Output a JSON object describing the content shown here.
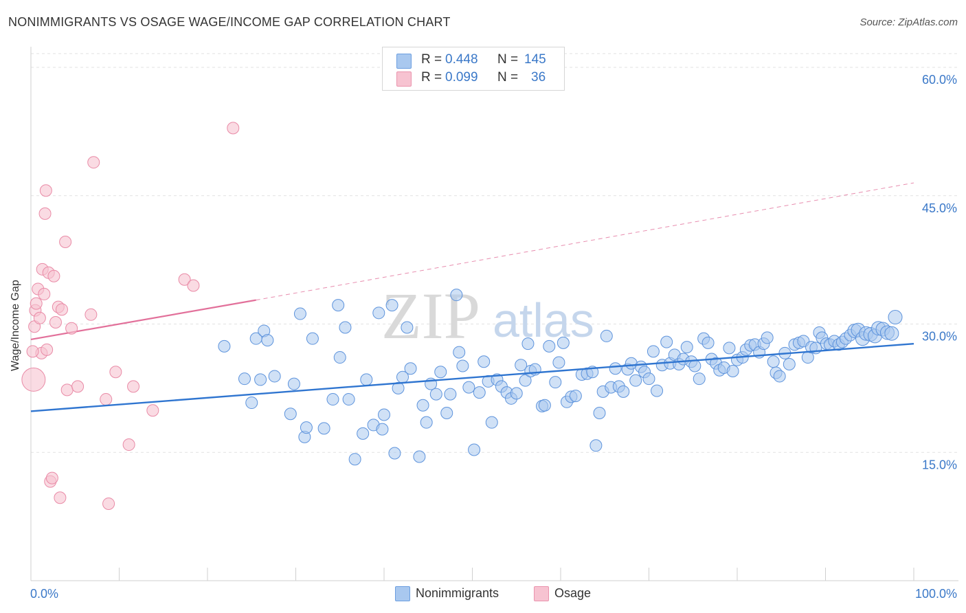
{
  "title": "NONIMMIGRANTS VS OSAGE WAGE/INCOME GAP CORRELATION CHART",
  "source": "Source: ZipAtlas.com",
  "watermark": {
    "zip": "ZIP",
    "atlas": "atlas"
  },
  "legend_stats": [
    {
      "r_label": "R = ",
      "r_value": "0.448",
      "n_label": "N = ",
      "n_value": "145",
      "color": "#a9c8ef",
      "border": "#6b9ee0"
    },
    {
      "r_label": "R = ",
      "r_value": "0.099",
      "n_label": "N = ",
      "n_value": "36",
      "color": "#f7c3d1",
      "border": "#ea93ad"
    }
  ],
  "colors": {
    "blue_fill": "#a9c8ef",
    "blue_stroke": "#5d93dc",
    "blue_line": "#2f75d0",
    "pink_fill": "#f7c3d1",
    "pink_stroke": "#e98aa6",
    "pink_line": "#e2709a",
    "tick_text": "#3a78c8",
    "grid": "#e1e1e1"
  },
  "chart_data": {
    "type": "scatter",
    "title": "NONIMMIGRANTS VS OSAGE WAGE/INCOME GAP CORRELATION CHART",
    "xlabel": "",
    "ylabel": "Wage/Income Gap",
    "xlim": [
      0,
      100
    ],
    "ylim": [
      0,
      61
    ],
    "x_ticks": [
      "0.0%",
      "100.0%"
    ],
    "y_ticks": [
      {
        "value": 15,
        "label": "15.0%"
      },
      {
        "value": 30,
        "label": "30.0%"
      },
      {
        "value": 45,
        "label": "45.0%"
      },
      {
        "value": 60,
        "label": "60.0%"
      }
    ],
    "grid": true,
    "legend_position": "bottom",
    "series": [
      {
        "name": "Nonimmigrants",
        "r": 0.448,
        "n": 145,
        "trend": {
          "x": [
            0,
            100
          ],
          "y": [
            19.8,
            27.7
          ],
          "style": "solid"
        },
        "points": [
          [
            21.9,
            27.4
          ],
          [
            24.2,
            23.6
          ],
          [
            25.0,
            20.8
          ],
          [
            25.5,
            28.3
          ],
          [
            26.0,
            23.5
          ],
          [
            26.4,
            29.2
          ],
          [
            26.8,
            28.1
          ],
          [
            27.6,
            23.9
          ],
          [
            29.4,
            19.5
          ],
          [
            29.8,
            23.0
          ],
          [
            30.5,
            31.2
          ],
          [
            31.0,
            16.8
          ],
          [
            31.2,
            17.9
          ],
          [
            31.9,
            28.3
          ],
          [
            33.2,
            17.8
          ],
          [
            34.2,
            21.2
          ],
          [
            34.8,
            32.2
          ],
          [
            35.0,
            26.1
          ],
          [
            35.6,
            29.6
          ],
          [
            36.0,
            21.2
          ],
          [
            36.7,
            14.2
          ],
          [
            37.6,
            17.2
          ],
          [
            38.0,
            23.5
          ],
          [
            38.8,
            18.2
          ],
          [
            39.4,
            31.3
          ],
          [
            39.8,
            17.7
          ],
          [
            40.0,
            19.4
          ],
          [
            40.9,
            32.2
          ],
          [
            41.2,
            14.9
          ],
          [
            41.6,
            22.5
          ],
          [
            42.1,
            23.8
          ],
          [
            42.6,
            29.6
          ],
          [
            43.0,
            24.8
          ],
          [
            44.0,
            14.5
          ],
          [
            44.4,
            20.5
          ],
          [
            44.8,
            18.5
          ],
          [
            45.3,
            23.0
          ],
          [
            45.9,
            21.8
          ],
          [
            46.4,
            24.4
          ],
          [
            47.1,
            19.6
          ],
          [
            47.5,
            21.8
          ],
          [
            48.2,
            33.4
          ],
          [
            48.5,
            26.7
          ],
          [
            48.9,
            25.1
          ],
          [
            49.6,
            22.6
          ],
          [
            50.2,
            15.3
          ],
          [
            50.8,
            22.0
          ],
          [
            51.3,
            25.6
          ],
          [
            51.8,
            23.3
          ],
          [
            52.2,
            18.5
          ],
          [
            52.8,
            23.5
          ],
          [
            53.3,
            22.7
          ],
          [
            53.9,
            22.0
          ],
          [
            54.4,
            21.3
          ],
          [
            55.0,
            21.9
          ],
          [
            55.5,
            25.2
          ],
          [
            56.0,
            23.4
          ],
          [
            56.3,
            27.7
          ],
          [
            56.6,
            24.5
          ],
          [
            57.1,
            24.7
          ],
          [
            57.9,
            20.4
          ],
          [
            58.2,
            20.5
          ],
          [
            58.7,
            27.4
          ],
          [
            59.4,
            23.2
          ],
          [
            59.8,
            25.5
          ],
          [
            60.3,
            27.8
          ],
          [
            60.7,
            20.9
          ],
          [
            61.2,
            21.5
          ],
          [
            61.7,
            21.6
          ],
          [
            62.4,
            24.1
          ],
          [
            63.0,
            24.2
          ],
          [
            63.6,
            24.4
          ],
          [
            64.0,
            15.8
          ],
          [
            64.4,
            19.6
          ],
          [
            64.8,
            22.1
          ],
          [
            65.2,
            28.6
          ],
          [
            65.7,
            22.6
          ],
          [
            66.2,
            24.8
          ],
          [
            66.6,
            22.7
          ],
          [
            67.1,
            22.1
          ],
          [
            67.6,
            24.7
          ],
          [
            68.0,
            25.4
          ],
          [
            68.5,
            23.4
          ],
          [
            69.1,
            25.0
          ],
          [
            69.5,
            24.4
          ],
          [
            70.0,
            23.6
          ],
          [
            70.5,
            26.8
          ],
          [
            70.9,
            22.2
          ],
          [
            71.5,
            25.2
          ],
          [
            72.0,
            27.9
          ],
          [
            72.4,
            25.4
          ],
          [
            72.9,
            26.4
          ],
          [
            73.4,
            25.3
          ],
          [
            73.9,
            25.9
          ],
          [
            74.3,
            27.3
          ],
          [
            74.8,
            25.6
          ],
          [
            75.2,
            25.1
          ],
          [
            75.7,
            23.6
          ],
          [
            76.2,
            28.3
          ],
          [
            76.7,
            27.8
          ],
          [
            77.1,
            25.9
          ],
          [
            77.6,
            25.4
          ],
          [
            78.0,
            24.6
          ],
          [
            78.5,
            24.9
          ],
          [
            79.1,
            27.2
          ],
          [
            79.5,
            24.5
          ],
          [
            80.0,
            25.8
          ],
          [
            80.6,
            26.1
          ],
          [
            81.0,
            27.0
          ],
          [
            81.5,
            27.5
          ],
          [
            82.0,
            27.6
          ],
          [
            82.5,
            26.7
          ],
          [
            83.0,
            27.7
          ],
          [
            83.4,
            28.4
          ],
          [
            84.1,
            25.6
          ],
          [
            84.4,
            24.3
          ],
          [
            84.8,
            23.9
          ],
          [
            85.4,
            26.6
          ],
          [
            85.9,
            25.3
          ],
          [
            86.5,
            27.6
          ],
          [
            87.0,
            27.8
          ],
          [
            87.5,
            28.0
          ],
          [
            88.0,
            26.1
          ],
          [
            88.4,
            27.3
          ],
          [
            88.9,
            27.2
          ],
          [
            89.3,
            29.0
          ],
          [
            89.6,
            28.4
          ],
          [
            90.1,
            27.7
          ],
          [
            90.5,
            27.6
          ],
          [
            91.0,
            28.0
          ],
          [
            91.5,
            27.6
          ],
          [
            91.9,
            27.9
          ],
          [
            92.3,
            28.3
          ],
          [
            92.8,
            28.7
          ],
          [
            93.3,
            29.2
          ],
          [
            93.7,
            29.3
          ],
          [
            94.2,
            28.3
          ],
          [
            94.6,
            28.9
          ],
          [
            95.1,
            28.8
          ],
          [
            95.6,
            28.6
          ],
          [
            96.0,
            29.5
          ],
          [
            96.5,
            29.4
          ],
          [
            97.0,
            29.0
          ],
          [
            97.5,
            28.9
          ],
          [
            97.9,
            30.8
          ]
        ]
      },
      {
        "name": "Osage",
        "r": 0.099,
        "n": 36,
        "trend": {
          "x": [
            0,
            25.5
          ],
          "y": [
            28.2,
            32.8
          ],
          "style": "solid",
          "extended": {
            "x": [
              25.5,
              100
            ],
            "y": [
              32.8,
              46.5
            ],
            "style": "dashed"
          }
        },
        "points": [
          [
            0.3,
            23.5
          ],
          [
            0.4,
            29.7
          ],
          [
            0.5,
            31.6
          ],
          [
            0.6,
            32.4
          ],
          [
            0.8,
            34.1
          ],
          [
            1.0,
            30.7
          ],
          [
            1.2,
            26.6
          ],
          [
            1.3,
            36.4
          ],
          [
            1.5,
            33.5
          ],
          [
            1.6,
            42.9
          ],
          [
            1.7,
            45.6
          ],
          [
            1.8,
            27.0
          ],
          [
            2.0,
            36.0
          ],
          [
            2.2,
            11.6
          ],
          [
            2.4,
            12.0
          ],
          [
            2.6,
            35.6
          ],
          [
            2.8,
            30.2
          ],
          [
            3.1,
            32.0
          ],
          [
            3.3,
            9.7
          ],
          [
            3.5,
            31.7
          ],
          [
            3.9,
            39.6
          ],
          [
            4.1,
            22.3
          ],
          [
            4.6,
            29.5
          ],
          [
            5.3,
            22.7
          ],
          [
            6.8,
            31.1
          ],
          [
            7.1,
            48.9
          ],
          [
            8.5,
            21.2
          ],
          [
            8.8,
            9.0
          ],
          [
            9.6,
            24.4
          ],
          [
            11.1,
            15.9
          ],
          [
            11.6,
            22.7
          ],
          [
            13.8,
            19.9
          ],
          [
            17.4,
            35.2
          ],
          [
            18.4,
            34.5
          ],
          [
            22.9,
            52.9
          ],
          [
            0.2,
            26.8
          ]
        ]
      }
    ]
  },
  "bottom_legend": [
    {
      "label": "Nonimmigrants"
    },
    {
      "label": "Osage"
    }
  ]
}
